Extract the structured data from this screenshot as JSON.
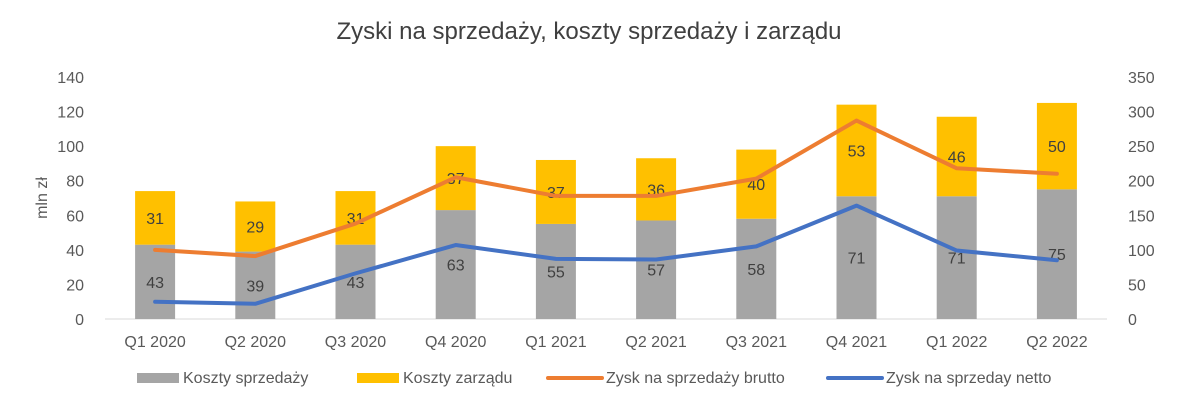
{
  "chart_data": {
    "type": "bar",
    "title": "Zyski na sprzedaży, koszty sprzedaży i zarządu",
    "ylabel": "mln zł",
    "categories": [
      "Q1 2020",
      "Q2 2020",
      "Q3 2020",
      "Q4 2020",
      "Q1 2021",
      "Q2 2021",
      "Q3 2021",
      "Q4 2021",
      "Q1 2022",
      "Q2 2022"
    ],
    "ylim": [
      0,
      140
    ],
    "yticks": [
      0,
      20,
      40,
      60,
      80,
      100,
      120,
      140
    ],
    "y2lim": [
      0,
      350
    ],
    "y2ticks": [
      0,
      50,
      100,
      150,
      200,
      250,
      300,
      350
    ],
    "grid": false,
    "legend_position": "bottom",
    "series": [
      {
        "name": "Koszty sprzedaży",
        "kind": "stacked-bar",
        "axis": "left",
        "color": "#A5A5A5",
        "values": [
          43,
          39,
          43,
          63,
          55,
          57,
          58,
          71,
          71,
          75
        ],
        "labels": [
          "43",
          "39",
          "43",
          "63",
          "55",
          "57",
          "58",
          "71",
          "71",
          "75"
        ]
      },
      {
        "name": "Koszty zarządu",
        "kind": "stacked-bar",
        "axis": "left",
        "color": "#FFC000",
        "values": [
          31,
          29,
          31,
          37,
          37,
          36,
          40,
          53,
          46,
          50
        ],
        "labels": [
          "31",
          "29",
          "31",
          "37",
          "37",
          "36",
          "40",
          "53",
          "46",
          "50"
        ]
      },
      {
        "name": "Zysk na sprzedaży brutto",
        "kind": "line",
        "axis": "right",
        "color": "#ED7D31",
        "values": [
          100,
          91,
          138,
          205,
          178,
          178,
          203,
          287,
          218,
          210
        ]
      },
      {
        "name": "Zysk na sprzeday netto",
        "kind": "line",
        "axis": "right",
        "color": "#4472C4",
        "values": [
          25,
          22,
          66,
          107,
          87,
          86,
          105,
          164,
          99,
          85
        ]
      }
    ]
  }
}
